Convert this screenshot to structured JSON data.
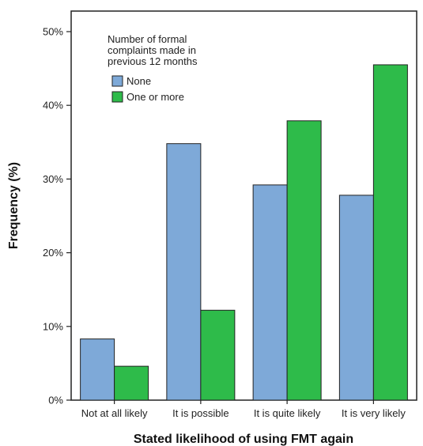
{
  "chart_data": {
    "type": "bar",
    "title": "",
    "xlabel": "Stated likelihood of using FMT again",
    "ylabel": "Frequency (%)",
    "categories": [
      "Not at all likely",
      "It is possible",
      "It is quite likely",
      "It is very likely"
    ],
    "series": [
      {
        "name": "None",
        "color": "#7ea9d8",
        "values": [
          8.3,
          34.8,
          29.2,
          27.8
        ]
      },
      {
        "name": "One or more",
        "color": "#2ebb4a",
        "values": [
          4.6,
          12.2,
          37.9,
          45.5
        ]
      }
    ],
    "ylim": [
      0,
      50
    ],
    "yticks": [
      0,
      10,
      20,
      30,
      40,
      50
    ],
    "ytick_labels": [
      "0%",
      "10%",
      "20%",
      "30%",
      "40%",
      "50%"
    ],
    "legend": {
      "title_lines": [
        "Number of formal",
        "complaints made in",
        "previous 12 months"
      ],
      "placement": "top-left"
    },
    "grid": false
  }
}
